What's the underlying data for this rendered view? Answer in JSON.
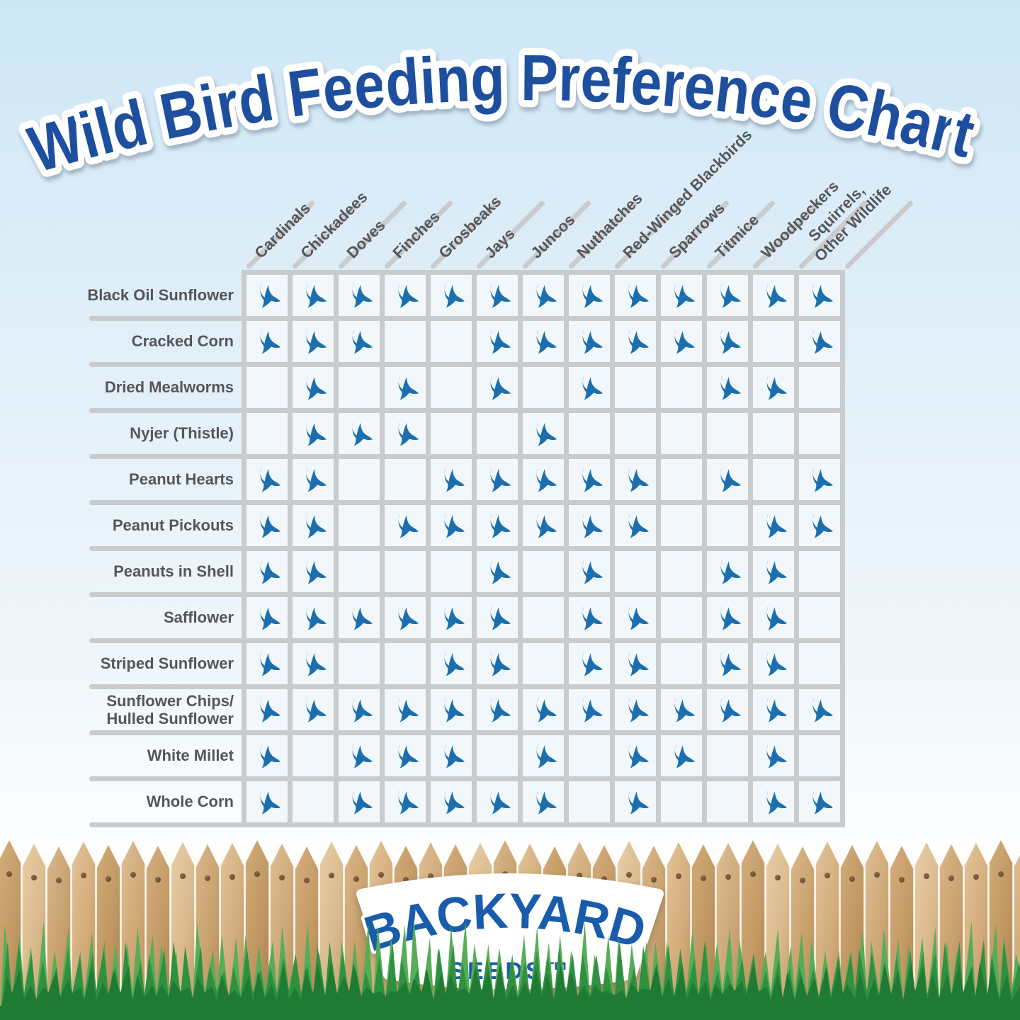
{
  "title": "Wild Bird Feeding Preference Chart",
  "chart_data": {
    "type": "table",
    "title": "Wild Bird Feeding Preference Chart",
    "cell_icon": "bird-icon",
    "cell_true_means": "this species eats this food",
    "columns": [
      "Cardinals",
      "Chickadees",
      "Doves",
      "Finches",
      "Grosbeaks",
      "Jays",
      "Juncos",
      "Nuthatches",
      "Red-Winged Blackbirds",
      "Sparrows",
      "Titmice",
      "Woodpeckers",
      "Squirrels,\nOther Wildlife"
    ],
    "rows": [
      {
        "label": "Black Oil Sunflower",
        "cells": [
          1,
          1,
          1,
          1,
          1,
          1,
          1,
          1,
          1,
          1,
          1,
          1,
          1
        ]
      },
      {
        "label": "Cracked Corn",
        "cells": [
          1,
          1,
          1,
          0,
          0,
          1,
          1,
          1,
          1,
          1,
          1,
          0,
          1
        ]
      },
      {
        "label": "Dried Mealworms",
        "cells": [
          0,
          1,
          0,
          1,
          0,
          1,
          0,
          1,
          0,
          0,
          1,
          1,
          0
        ]
      },
      {
        "label": "Nyjer (Thistle)",
        "cells": [
          0,
          1,
          1,
          1,
          0,
          0,
          1,
          0,
          0,
          0,
          0,
          0,
          0
        ]
      },
      {
        "label": "Peanut Hearts",
        "cells": [
          1,
          1,
          0,
          0,
          1,
          1,
          1,
          1,
          1,
          0,
          1,
          0,
          1
        ]
      },
      {
        "label": "Peanut Pickouts",
        "cells": [
          1,
          1,
          0,
          1,
          1,
          1,
          1,
          1,
          1,
          0,
          0,
          1,
          1
        ]
      },
      {
        "label": "Peanuts in Shell",
        "cells": [
          1,
          1,
          0,
          0,
          0,
          1,
          0,
          1,
          0,
          0,
          1,
          1,
          0
        ]
      },
      {
        "label": "Safflower",
        "cells": [
          1,
          1,
          1,
          1,
          1,
          1,
          0,
          1,
          1,
          0,
          1,
          1,
          0
        ]
      },
      {
        "label": "Striped Sunflower",
        "cells": [
          1,
          1,
          0,
          0,
          1,
          1,
          0,
          1,
          1,
          0,
          1,
          1,
          0
        ]
      },
      {
        "label": "Sunflower Chips/\nHulled Sunflower",
        "cells": [
          1,
          1,
          1,
          1,
          1,
          1,
          1,
          1,
          1,
          1,
          1,
          1,
          1
        ]
      },
      {
        "label": "White Millet",
        "cells": [
          1,
          0,
          1,
          1,
          1,
          0,
          1,
          0,
          1,
          1,
          0,
          1,
          0
        ]
      },
      {
        "label": "Whole Corn",
        "cells": [
          1,
          0,
          1,
          1,
          1,
          1,
          1,
          0,
          1,
          0,
          0,
          1,
          1
        ]
      }
    ]
  },
  "logo": {
    "line1": "BACKYARD",
    "line2": "SEEDS™"
  },
  "colors": {
    "title_blue": "#1e4f9e",
    "bird_blue": "#1c6fae",
    "grid_line": "#c9cbcd",
    "label_gray": "#54565a",
    "logo_blue": "#1a5cac",
    "background_blue": "#cde6f5"
  }
}
